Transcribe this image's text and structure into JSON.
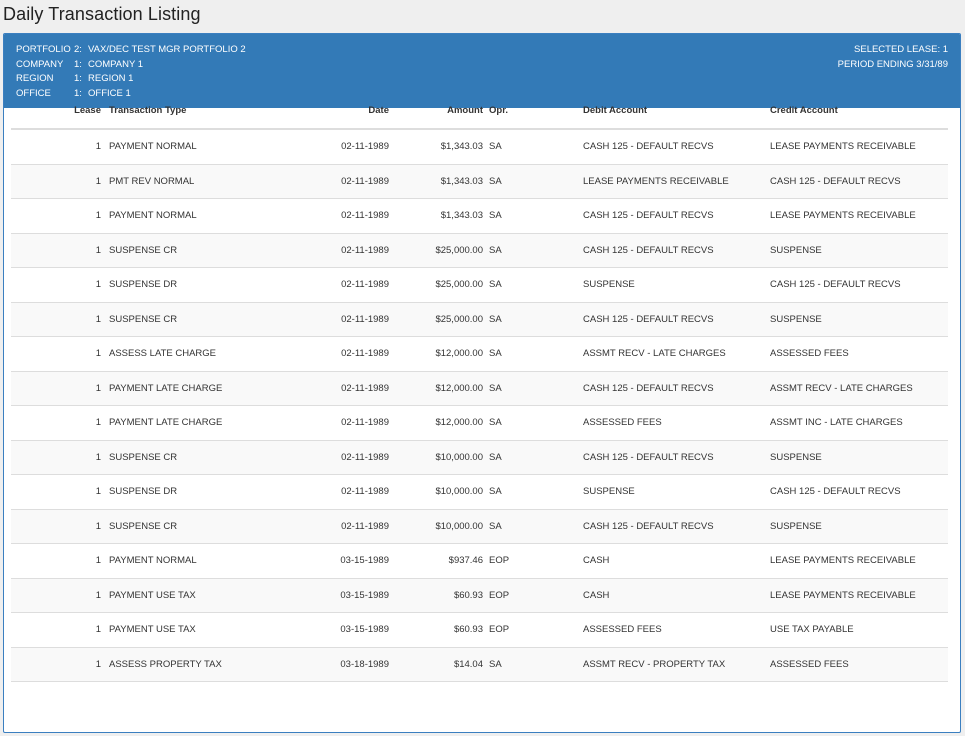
{
  "page": {
    "title": "Daily Transaction Listing"
  },
  "header": {
    "portfolio": {
      "label": "PORTFOLIO",
      "num": "2:",
      "value": "VAX/DEC TEST MGR PORTFOLIO 2"
    },
    "company": {
      "label": "COMPANY",
      "num": "1:",
      "value": "COMPANY 1"
    },
    "region": {
      "label": "REGION",
      "num": "1:",
      "value": "REGION 1"
    },
    "office": {
      "label": "OFFICE",
      "num": "1:",
      "value": "OFFICE 1"
    },
    "selected_lease": "SELECTED LEASE: 1",
    "period_ending": "PERIOD ENDING 3/31/89"
  },
  "table": {
    "columns": [
      "Lease",
      "Transaction Type",
      "Date",
      "Amount",
      "Opr.",
      "Debit Account",
      "Credit Account"
    ],
    "rows": [
      [
        "1",
        "PAYMENT NORMAL",
        "02-11-1989",
        "$1,343.03",
        "SA",
        "CASH 125 - DEFAULT RECVS",
        "LEASE PAYMENTS RECEIVABLE"
      ],
      [
        "1",
        "PMT REV NORMAL",
        "02-11-1989",
        "$1,343.03",
        "SA",
        "LEASE PAYMENTS RECEIVABLE",
        "CASH 125 - DEFAULT RECVS"
      ],
      [
        "1",
        "PAYMENT NORMAL",
        "02-11-1989",
        "$1,343.03",
        "SA",
        "CASH 125 - DEFAULT RECVS",
        "LEASE PAYMENTS RECEIVABLE"
      ],
      [
        "1",
        "SUSPENSE CR",
        "02-11-1989",
        "$25,000.00",
        "SA",
        "CASH 125 - DEFAULT RECVS",
        "SUSPENSE"
      ],
      [
        "1",
        "SUSPENSE DR",
        "02-11-1989",
        "$25,000.00",
        "SA",
        "SUSPENSE",
        "CASH 125 - DEFAULT RECVS"
      ],
      [
        "1",
        "SUSPENSE CR",
        "02-11-1989",
        "$25,000.00",
        "SA",
        "CASH 125 - DEFAULT RECVS",
        "SUSPENSE"
      ],
      [
        "1",
        "ASSESS LATE CHARGE",
        "02-11-1989",
        "$12,000.00",
        "SA",
        "ASSMT RECV - LATE CHARGES",
        "ASSESSED FEES"
      ],
      [
        "1",
        "PAYMENT LATE CHARGE",
        "02-11-1989",
        "$12,000.00",
        "SA",
        "CASH 125 - DEFAULT RECVS",
        "ASSMT RECV - LATE CHARGES"
      ],
      [
        "1",
        "PAYMENT LATE CHARGE",
        "02-11-1989",
        "$12,000.00",
        "SA",
        "ASSESSED FEES",
        "ASSMT INC - LATE CHARGES"
      ],
      [
        "1",
        "SUSPENSE CR",
        "02-11-1989",
        "$10,000.00",
        "SA",
        "CASH 125 - DEFAULT RECVS",
        "SUSPENSE"
      ],
      [
        "1",
        "SUSPENSE DR",
        "02-11-1989",
        "$10,000.00",
        "SA",
        "SUSPENSE",
        "CASH 125 - DEFAULT RECVS"
      ],
      [
        "1",
        "SUSPENSE CR",
        "02-11-1989",
        "$10,000.00",
        "SA",
        "CASH 125 - DEFAULT RECVS",
        "SUSPENSE"
      ],
      [
        "1",
        "PAYMENT NORMAL",
        "03-15-1989",
        "$937.46",
        "EOP",
        "CASH",
        "LEASE PAYMENTS RECEIVABLE"
      ],
      [
        "1",
        "PAYMENT USE TAX",
        "03-15-1989",
        "$60.93",
        "EOP",
        "CASH",
        "LEASE PAYMENTS RECEIVABLE"
      ],
      [
        "1",
        "PAYMENT USE TAX",
        "03-15-1989",
        "$60.93",
        "EOP",
        "ASSESSED FEES",
        "USE TAX PAYABLE"
      ],
      [
        "1",
        "ASSESS PROPERTY TAX",
        "03-18-1989",
        "$14.04",
        "SA",
        "ASSMT RECV - PROPERTY TAX",
        "ASSESSED FEES"
      ]
    ]
  }
}
